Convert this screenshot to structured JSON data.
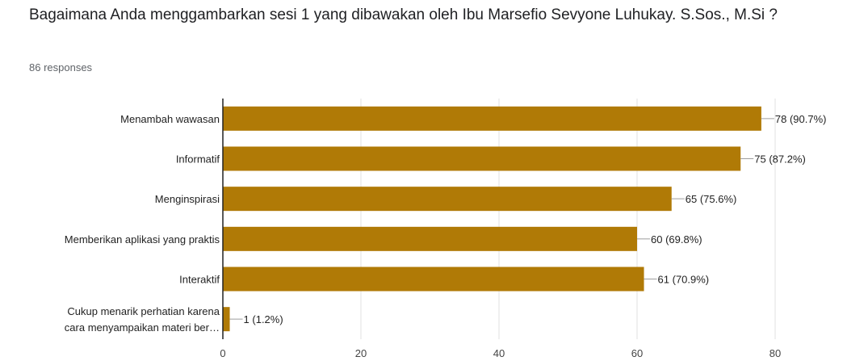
{
  "question": {
    "title": "Bagaimana Anda menggambarkan sesi 1  yang dibawakan oleh Ibu Marsefio Sevyone Luhukay. S.Sos., M.Si ?",
    "responses": "86 responses"
  },
  "colors": {
    "bar": "#b07a06",
    "axis": "#222222",
    "grid": "#e0e0e0",
    "leader": "#9e9e9e"
  },
  "chart_data": {
    "type": "bar",
    "orientation": "horizontal",
    "categories": [
      [
        "Menambah wawasan"
      ],
      [
        "Informatif"
      ],
      [
        "Menginspirasi"
      ],
      [
        "Memberikan aplikasi yang praktis"
      ],
      [
        "Interaktif"
      ],
      [
        "Cukup menarik perhatian karena",
        "cara menyampaikan materi ber…"
      ]
    ],
    "values": [
      78,
      75,
      65,
      60,
      61,
      1
    ],
    "value_labels": [
      "78 (90.7%)",
      "75 (87.2%)",
      "65 (75.6%)",
      "60 (69.8%)",
      "61 (70.9%)",
      "1 (1.2%)"
    ],
    "xlim": [
      0,
      80
    ],
    "xticks": [
      0,
      20,
      40,
      60,
      80
    ],
    "grid": true
  }
}
